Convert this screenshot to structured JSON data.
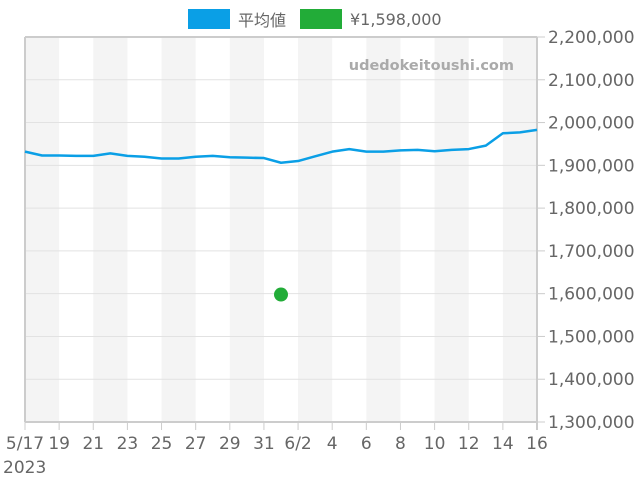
{
  "legend": {
    "items": [
      {
        "label": "平均値",
        "color": "#0a9fe6"
      },
      {
        "label": "¥1,598,000",
        "color": "#22ac38"
      }
    ]
  },
  "watermark": "udedokeitoushi.com",
  "colors": {
    "line": "#0a9fe6",
    "point": "#22ac38",
    "stripe": "#f4f4f4",
    "grid": "#e2e2e2",
    "axis": "#cccccc",
    "text": "#666666"
  },
  "chart_data": {
    "type": "line",
    "title": "",
    "xlabel": "",
    "ylabel": "",
    "ylim": [
      1300000,
      2200000
    ],
    "yticks": [
      1300000,
      1400000,
      1500000,
      1600000,
      1700000,
      1800000,
      1900000,
      2000000,
      2100000,
      2200000
    ],
    "ytick_labels": [
      "1,300,000",
      "1,400,000",
      "1,500,000",
      "1,600,000",
      "1,700,000",
      "1,800,000",
      "1,900,000",
      "2,000,000",
      "2,100,000",
      "2,200,000"
    ],
    "xlim_days": [
      0,
      30
    ],
    "xticks": [
      {
        "day": 0,
        "label": "5/17"
      },
      {
        "day": 2,
        "label": "19"
      },
      {
        "day": 4,
        "label": "21"
      },
      {
        "day": 6,
        "label": "23"
      },
      {
        "day": 8,
        "label": "25"
      },
      {
        "day": 10,
        "label": "27"
      },
      {
        "day": 12,
        "label": "29"
      },
      {
        "day": 14,
        "label": "31"
      },
      {
        "day": 16,
        "label": "6/2"
      },
      {
        "day": 18,
        "label": "4"
      },
      {
        "day": 20,
        "label": "6"
      },
      {
        "day": 22,
        "label": "8"
      },
      {
        "day": 24,
        "label": "10"
      },
      {
        "day": 26,
        "label": "12"
      },
      {
        "day": 28,
        "label": "14"
      },
      {
        "day": 30,
        "label": "16"
      }
    ],
    "year_label": "2023",
    "grid": true,
    "legend_position": "top",
    "x": [
      "5/17",
      "5/18",
      "5/19",
      "5/20",
      "5/21",
      "5/22",
      "5/23",
      "5/24",
      "5/25",
      "5/26",
      "5/27",
      "5/28",
      "5/29",
      "5/30",
      "5/31",
      "6/1",
      "6/2",
      "6/3",
      "6/4",
      "6/5",
      "6/6",
      "6/7",
      "6/8",
      "6/9",
      "6/10",
      "6/11",
      "6/12",
      "6/13",
      "6/14",
      "6/15",
      "6/16"
    ],
    "series": [
      {
        "name": "平均値",
        "type": "line",
        "values": [
          1932000,
          1923000,
          1923000,
          1922000,
          1922000,
          1928000,
          1922000,
          1920000,
          1916000,
          1916000,
          1920000,
          1922000,
          1919000,
          1918000,
          1917000,
          1906000,
          1910000,
          1921000,
          1932000,
          1938000,
          1932000,
          1932000,
          1935000,
          1936000,
          1933000,
          1936000,
          1938000,
          1946000,
          1975000,
          1977000,
          1983000
        ]
      },
      {
        "name": "¥1,598,000",
        "type": "scatter",
        "points": [
          {
            "x": "6/1",
            "day": 15,
            "value": 1598000
          }
        ]
      }
    ]
  }
}
